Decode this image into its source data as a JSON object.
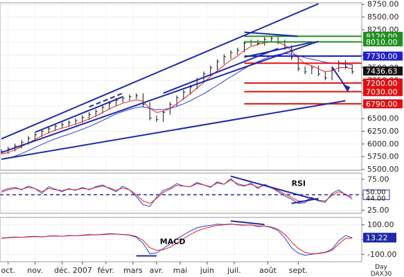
{
  "chart_data": {
    "type": "line",
    "panels": [
      {
        "name": "price",
        "y_ticks": [
          5500,
          5750,
          6000,
          6250,
          6500,
          6750,
          7000,
          7250,
          7500,
          7750,
          8000,
          8250,
          8500,
          8750
        ],
        "y_tick_labels": [
          "5500.00",
          "5750.00",
          "6000.00",
          "6250.00",
          "6500.00",
          "6750.00",
          "7000.00",
          "7250.00",
          "7500.00",
          "7750.00",
          "8000.00",
          "8250.00",
          "8500.00",
          "8750.00"
        ],
        "ylim": [
          5480,
          8780
        ],
        "levels": [
          {
            "value": 8120,
            "label": "8120.00",
            "color": "#1f8f1f"
          },
          {
            "value": 8010,
            "label": "8010.00",
            "color": "#1f8f1f"
          },
          {
            "value": 7730,
            "label": "7730.00",
            "color": "#1f1fd1"
          },
          {
            "value": 7590,
            "label": "",
            "color": "#e01010"
          },
          {
            "value": 7200,
            "label": "7200.00",
            "color": "#e01010"
          },
          {
            "value": 7030,
            "label": "7030.00",
            "color": "#e01010"
          },
          {
            "value": 6790,
            "label": "6790.00",
            "color": "#e01010"
          }
        ],
        "last_price": {
          "value": 7436.63,
          "label": "7436.63"
        },
        "close": [
          5850,
          5900,
          5960,
          6030,
          6110,
          6180,
          6250,
          6300,
          6350,
          6380,
          6420,
          6460,
          6520,
          6580,
          6640,
          6720,
          6800,
          6860,
          6900,
          6930,
          6950,
          6780,
          6510,
          6480,
          6620,
          6780,
          6910,
          7020,
          7120,
          7260,
          7380,
          7500,
          7620,
          7720,
          7800,
          7850,
          7980,
          8010,
          7980,
          8060,
          8080,
          8010,
          7900,
          7700,
          7480,
          7420,
          7500,
          7380,
          7300,
          7460,
          7600,
          7520,
          7420
        ],
        "ma_red": [
          5800,
          5830,
          5880,
          5950,
          6020,
          6090,
          6160,
          6220,
          6270,
          6310,
          6350,
          6390,
          6440,
          6490,
          6550,
          6620,
          6690,
          6750,
          6800,
          6840,
          6870,
          6840,
          6700,
          6620,
          6640,
          6700,
          6790,
          6890,
          6990,
          7100,
          7210,
          7330,
          7440,
          7550,
          7650,
          7730,
          7840,
          7920,
          7960,
          7990,
          8010,
          8000,
          7950,
          7840,
          7690,
          7580,
          7540,
          7480,
          7420,
          7440,
          7500,
          7510,
          7480
        ],
        "ma_blue": [
          5700,
          5720,
          5760,
          5810,
          5870,
          5930,
          5990,
          6050,
          6100,
          6150,
          6190,
          6240,
          6290,
          6340,
          6400,
          6460,
          6530,
          6590,
          6640,
          6680,
          6720,
          6730,
          6700,
          6670,
          6680,
          6700,
          6740,
          6790,
          6850,
          6920,
          6990,
          7070,
          7150,
          7240,
          7320,
          7400,
          7480,
          7560,
          7620,
          7680,
          7730,
          7760,
          7780,
          7770,
          7740,
          7700,
          7670,
          7640,
          7610,
          7590,
          7580,
          7570,
          7560
        ],
        "trendlines": [
          {
            "p1": [
              0,
              6100
            ],
            "p2": [
              47,
              8760
            ],
            "style": "solid"
          },
          {
            "p1": [
              0,
              5700
            ],
            "p2": [
              51,
              6850
            ],
            "style": "solid"
          },
          {
            "p1": [
              0,
              5830
            ],
            "p2": [
              47,
              8020
            ],
            "style": "solid"
          },
          {
            "p1": [
              5,
              6230
            ],
            "p2": [
              18,
              6930
            ],
            "style": "solid"
          },
          {
            "p1": [
              13,
              6730
            ],
            "p2": [
              18,
              7000
            ],
            "style": "dashed"
          },
          {
            "p1": [
              24,
              7000
            ],
            "p2": [
              41,
              7880
            ],
            "style": "solid"
          },
          {
            "p1": [
              36,
              7710
            ],
            "p2": [
              46,
              8000
            ],
            "style": "solid"
          },
          {
            "p1": [
              36,
              8200
            ],
            "p2": [
              44,
              8120
            ],
            "style": "solid"
          }
        ]
      },
      {
        "name": "rsi",
        "label": "RSI",
        "y_ticks": [
          25,
          50,
          75
        ],
        "y_tick_labels": [
          "25.00",
          "50.00",
          "75.00"
        ],
        "ylim": [
          20,
          85
        ],
        "current_labels": [
          "50.00",
          "44.00"
        ],
        "values_blue": [
          56,
          60,
          62,
          58,
          64,
          60,
          52,
          63,
          59,
          55,
          60,
          57,
          62,
          58,
          63,
          66,
          60,
          55,
          64,
          58,
          47,
          34,
          31,
          46,
          57,
          61,
          68,
          64,
          63,
          70,
          66,
          62,
          71,
          67,
          76,
          66,
          64,
          69,
          60,
          67,
          62,
          55,
          48,
          43,
          36,
          37,
          46,
          40,
          38,
          52,
          58,
          50,
          43
        ],
        "values_red": [
          54,
          58,
          60,
          59,
          62,
          60,
          55,
          60,
          58,
          57,
          59,
          58,
          60,
          59,
          62,
          64,
          61,
          57,
          61,
          58,
          50,
          40,
          36,
          44,
          54,
          59,
          65,
          64,
          63,
          68,
          66,
          63,
          69,
          67,
          74,
          68,
          65,
          67,
          62,
          65,
          61,
          57,
          51,
          46,
          40,
          40,
          45,
          41,
          40,
          49,
          55,
          51,
          46
        ],
        "trendlines": [
          {
            "p1": [
              34,
              80
            ],
            "p2": [
              47,
              41
            ],
            "style": "solid"
          },
          {
            "p1": [
              43,
              36
            ],
            "p2": [
              47,
              44
            ],
            "style": "solid"
          }
        ],
        "reference_line": {
          "value": 50,
          "style": "dashed"
        }
      },
      {
        "name": "macd",
        "label": "MACD",
        "y_ticks": [
          -100,
          0,
          100
        ],
        "y_tick_labels": [
          "-100.00",
          "0.00",
          "100.00"
        ],
        "ylim": [
          -150,
          150
        ],
        "current_label": "13.22",
        "values_blue": [
          10,
          14,
          18,
          16,
          20,
          22,
          18,
          24,
          26,
          22,
          28,
          26,
          30,
          34,
          32,
          36,
          40,
          38,
          34,
          30,
          16,
          -26,
          -95,
          -90,
          -60,
          -30,
          4,
          32,
          58,
          80,
          90,
          96,
          105,
          102,
          106,
          100,
          97,
          100,
          88,
          92,
          82,
          60,
          12,
          -55,
          -92,
          -106,
          -100,
          -92,
          -86,
          -64,
          -8,
          28,
          12
        ],
        "values_red": [
          8,
          12,
          15,
          16,
          18,
          20,
          19,
          22,
          24,
          23,
          26,
          26,
          28,
          31,
          32,
          34,
          37,
          37,
          35,
          32,
          22,
          -5,
          -55,
          -72,
          -68,
          -52,
          -24,
          6,
          34,
          58,
          74,
          86,
          96,
          100,
          104,
          102,
          99,
          99,
          92,
          92,
          86,
          70,
          36,
          -15,
          -60,
          -86,
          -96,
          -94,
          -88,
          -72,
          -30,
          8,
          10
        ],
        "trendlines": [
          {
            "p1": [
              34,
              126
            ],
            "p2": [
              39,
              102
            ],
            "style": "solid"
          },
          {
            "p1": [
              20,
              -110
            ],
            "p2": [
              23,
              -110
            ],
            "style": "solid"
          }
        ]
      }
    ],
    "x_labels": [
      "oct.",
      "nov.",
      "déc.",
      "2007",
      "févr.",
      "mars",
      "avr.",
      "mai",
      "juin",
      "juil.",
      "août",
      "sept."
    ],
    "x_label_positions": [
      1,
      5,
      9,
      12,
      15.5,
      19.5,
      23,
      26.5,
      30.5,
      34.5,
      39.5,
      44
    ],
    "x_range": [
      0,
      53
    ],
    "period": "Day",
    "symbol": "DAX30"
  }
}
